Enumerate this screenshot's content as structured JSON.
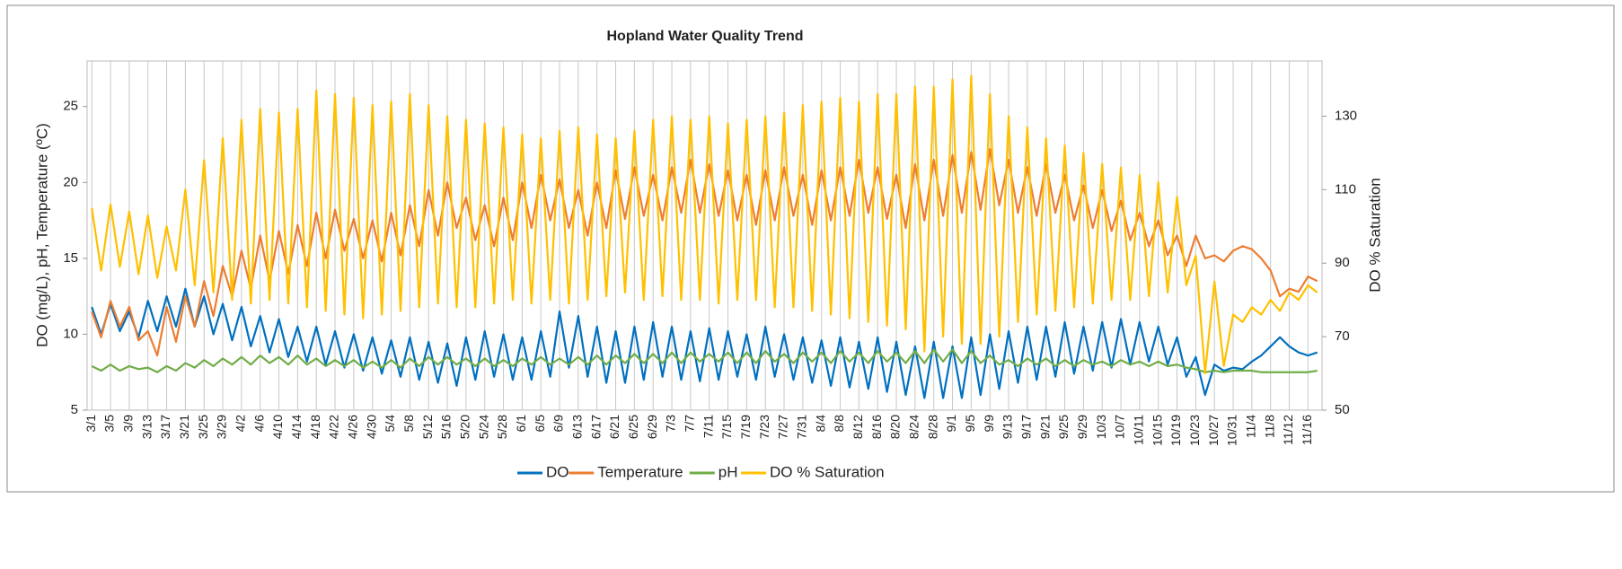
{
  "chart_data": {
    "type": "line",
    "title": "Hopland Water Quality Trend",
    "y_label": "DO (mg/L), pH, Temperature (ºC)",
    "y2_label": "DO % Saturation",
    "categories": [
      "3/1",
      null,
      "3/5",
      null,
      "3/9",
      null,
      "3/13",
      null,
      "3/17",
      null,
      "3/21",
      null,
      "3/25",
      null,
      "3/29",
      null,
      "4/2",
      null,
      "4/6",
      null,
      "4/10",
      null,
      "4/14",
      null,
      "4/18",
      null,
      "4/22",
      null,
      "4/26",
      null,
      "4/30",
      null,
      "5/4",
      null,
      "5/8",
      null,
      "5/12",
      null,
      "5/16",
      null,
      "5/20",
      null,
      "5/24",
      null,
      "5/28",
      null,
      "6/1",
      null,
      "6/5",
      null,
      "6/9",
      null,
      "6/13",
      null,
      "6/17",
      null,
      "6/21",
      null,
      "6/25",
      null,
      "6/29",
      null,
      "7/3",
      null,
      "7/7",
      null,
      "7/11",
      null,
      "7/15",
      null,
      "7/19",
      null,
      "7/23",
      null,
      "7/27",
      null,
      "7/31",
      null,
      "8/4",
      null,
      "8/8",
      null,
      "8/12",
      null,
      "8/16",
      null,
      "8/20",
      null,
      "8/24",
      null,
      "8/28",
      null,
      "9/1",
      null,
      "9/5",
      null,
      "9/9",
      null,
      "9/13",
      null,
      "9/17",
      null,
      "9/21",
      null,
      "9/25",
      null,
      "9/29",
      null,
      "10/3",
      null,
      "10/7",
      null,
      "10/11",
      null,
      "10/15",
      null,
      "10/19",
      null,
      "10/23",
      null,
      "10/27",
      null,
      "10/31",
      null,
      "11/4",
      null,
      "11/8",
      null,
      "11/12",
      null,
      "11/16",
      null
    ],
    "series": [
      {
        "name": "DO",
        "color": "#0070c0",
        "values": [
          11.8,
          10.0,
          12.0,
          10.2,
          11.5,
          9.8,
          12.2,
          10.2,
          12.5,
          10.5,
          13.0,
          10.5,
          12.5,
          10.0,
          12.0,
          9.6,
          11.8,
          9.2,
          11.2,
          8.8,
          11.0,
          8.5,
          10.5,
          8.2,
          10.5,
          8.0,
          10.2,
          7.8,
          10.0,
          7.6,
          9.8,
          7.4,
          9.6,
          7.2,
          9.8,
          7.0,
          9.5,
          6.8,
          9.4,
          6.6,
          9.8,
          7.0,
          10.2,
          7.2,
          10.0,
          7.0,
          9.8,
          7.0,
          10.2,
          7.2,
          11.5,
          7.8,
          11.2,
          7.2,
          10.5,
          6.8,
          10.2,
          6.8,
          10.5,
          7.0,
          10.8,
          7.2,
          10.5,
          7.0,
          10.2,
          6.9,
          10.4,
          7.0,
          10.2,
          7.2,
          10.0,
          7.0,
          10.5,
          7.2,
          10.0,
          7.0,
          9.8,
          6.8,
          9.6,
          6.6,
          9.8,
          6.5,
          9.5,
          6.4,
          9.8,
          6.2,
          9.5,
          6.0,
          9.2,
          5.8,
          9.5,
          5.8,
          9.2,
          5.8,
          9.8,
          6.0,
          10.0,
          6.4,
          10.2,
          6.8,
          10.5,
          7.0,
          10.5,
          7.2,
          10.8,
          7.4,
          10.5,
          7.6,
          10.8,
          7.8,
          11.0,
          8.0,
          10.8,
          8.2,
          10.5,
          8.0,
          9.8,
          7.2,
          8.5,
          6.0,
          8.0,
          7.6,
          7.8,
          7.7,
          8.2,
          8.6,
          9.2,
          9.8,
          9.2,
          8.8,
          8.6,
          8.8
        ]
      },
      {
        "name": "Temperature",
        "color": "#ed7d31",
        "values": [
          11.5,
          9.8,
          12.2,
          10.5,
          11.8,
          9.6,
          10.2,
          8.6,
          11.8,
          9.5,
          12.5,
          10.5,
          13.5,
          11.2,
          14.5,
          12.5,
          15.5,
          13.0,
          16.5,
          13.5,
          16.8,
          14.0,
          17.2,
          14.5,
          18.0,
          15.0,
          18.2,
          15.5,
          17.6,
          15.0,
          17.5,
          14.8,
          18.0,
          15.2,
          18.5,
          15.8,
          19.5,
          16.5,
          20.0,
          17.0,
          19.0,
          16.2,
          18.5,
          15.8,
          19.0,
          16.2,
          20.0,
          17.0,
          20.5,
          17.5,
          20.2,
          17.0,
          19.5,
          16.5,
          20.0,
          17.0,
          20.8,
          17.6,
          21.0,
          17.8,
          20.5,
          17.5,
          21.0,
          18.0,
          21.5,
          18.0,
          21.2,
          17.8,
          20.8,
          17.5,
          20.5,
          17.2,
          20.8,
          17.5,
          21.0,
          17.8,
          20.5,
          17.2,
          20.8,
          17.5,
          21.0,
          17.8,
          21.5,
          18.0,
          21.0,
          17.6,
          20.5,
          17.0,
          21.2,
          17.5,
          21.5,
          17.8,
          21.8,
          18.0,
          22.0,
          18.2,
          22.2,
          18.5,
          21.5,
          18.0,
          21.0,
          17.8,
          21.2,
          18.0,
          20.5,
          17.5,
          19.8,
          17.0,
          19.5,
          16.8,
          18.8,
          16.2,
          18.0,
          15.8,
          17.5,
          15.2,
          16.5,
          14.5,
          16.5,
          15.0,
          15.2,
          14.8,
          15.5,
          15.8,
          15.6,
          15.0,
          14.2,
          12.5,
          13.0,
          12.8,
          13.8,
          13.5
        ]
      },
      {
        "name": "pH",
        "color": "#70ad47",
        "values": [
          7.9,
          7.6,
          8.0,
          7.6,
          7.9,
          7.7,
          7.8,
          7.5,
          7.9,
          7.6,
          8.1,
          7.8,
          8.3,
          7.9,
          8.4,
          8.0,
          8.5,
          8.0,
          8.6,
          8.1,
          8.5,
          8.0,
          8.6,
          8.0,
          8.4,
          7.9,
          8.3,
          7.9,
          8.3,
          7.8,
          8.2,
          7.8,
          8.3,
          7.8,
          8.4,
          7.9,
          8.5,
          8.0,
          8.5,
          8.0,
          8.4,
          7.9,
          8.4,
          7.9,
          8.3,
          7.9,
          8.4,
          8.0,
          8.5,
          8.0,
          8.4,
          8.0,
          8.5,
          8.0,
          8.6,
          8.0,
          8.6,
          8.1,
          8.7,
          8.1,
          8.7,
          8.1,
          8.8,
          8.1,
          8.8,
          8.2,
          8.7,
          8.2,
          8.8,
          8.1,
          8.8,
          8.1,
          8.9,
          8.2,
          8.7,
          8.1,
          8.8,
          8.2,
          8.8,
          8.1,
          8.9,
          8.2,
          8.8,
          8.1,
          8.9,
          8.2,
          8.8,
          8.1,
          8.9,
          8.1,
          9.0,
          8.2,
          9.0,
          8.1,
          8.9,
          8.1,
          8.6,
          8.0,
          8.3,
          7.9,
          8.4,
          8.0,
          8.4,
          7.9,
          8.3,
          7.9,
          8.3,
          8.0,
          8.2,
          7.9,
          8.3,
          8.0,
          8.2,
          7.9,
          8.2,
          7.9,
          8.0,
          7.8,
          7.7,
          7.5,
          7.6,
          7.5,
          7.6,
          7.6,
          7.6,
          7.5,
          7.5,
          7.5,
          7.5,
          7.5,
          7.5,
          7.6
        ]
      },
      {
        "name": "DO % Saturation",
        "color": "#ffc000",
        "axis": "y2",
        "values": [
          105,
          88,
          106,
          89,
          104,
          87,
          103,
          86,
          100,
          88,
          110,
          84,
          118,
          82,
          124,
          80,
          129,
          79,
          132,
          80,
          131,
          79,
          132,
          78,
          137,
          77,
          136,
          76,
          135,
          75,
          133,
          76,
          134,
          77,
          136,
          78,
          133,
          79,
          130,
          78,
          129,
          78,
          128,
          79,
          127,
          80,
          125,
          79,
          124,
          80,
          126,
          79,
          127,
          80,
          125,
          81,
          124,
          82,
          126,
          80,
          129,
          81,
          130,
          80,
          129,
          80,
          130,
          79,
          128,
          80,
          129,
          80,
          130,
          78,
          131,
          78,
          133,
          77,
          134,
          76,
          135,
          75,
          134,
          74,
          136,
          73,
          136,
          72,
          138,
          66,
          138,
          70,
          140,
          68,
          141,
          68,
          136,
          70,
          130,
          74,
          127,
          76,
          124,
          77,
          122,
          78,
          120,
          79,
          117,
          80,
          116,
          80,
          114,
          81,
          112,
          82,
          108,
          84,
          92,
          60,
          85,
          62,
          76,
          74,
          78,
          76,
          80,
          77,
          82,
          80,
          84,
          82
        ]
      }
    ],
    "ylim": [
      5,
      28
    ],
    "yticks": [
      5,
      10,
      15,
      20,
      25
    ],
    "y2lim": [
      50,
      145
    ],
    "y2ticks": [
      50,
      70,
      90,
      110,
      130
    ],
    "x_grid": true,
    "legend": "bottom"
  }
}
